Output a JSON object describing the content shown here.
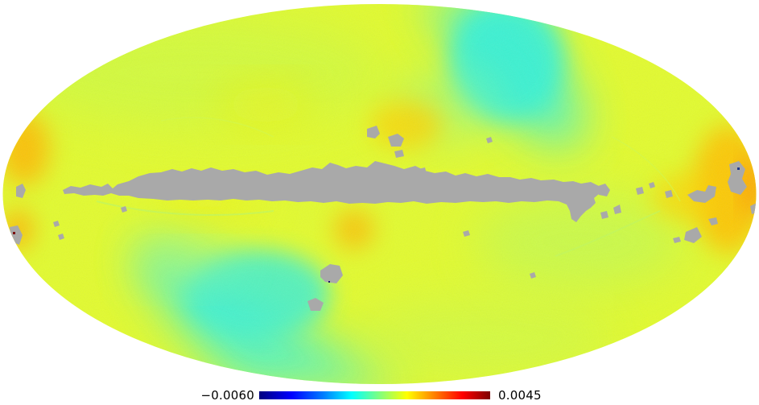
{
  "map": {
    "projection": "mollweide",
    "colormap": "jet",
    "mask_color": "#a9a9a9",
    "background_color": "#e6fb2c"
  },
  "colorbar": {
    "min_label": "−0.0060",
    "max_label": "0.0045"
  }
}
